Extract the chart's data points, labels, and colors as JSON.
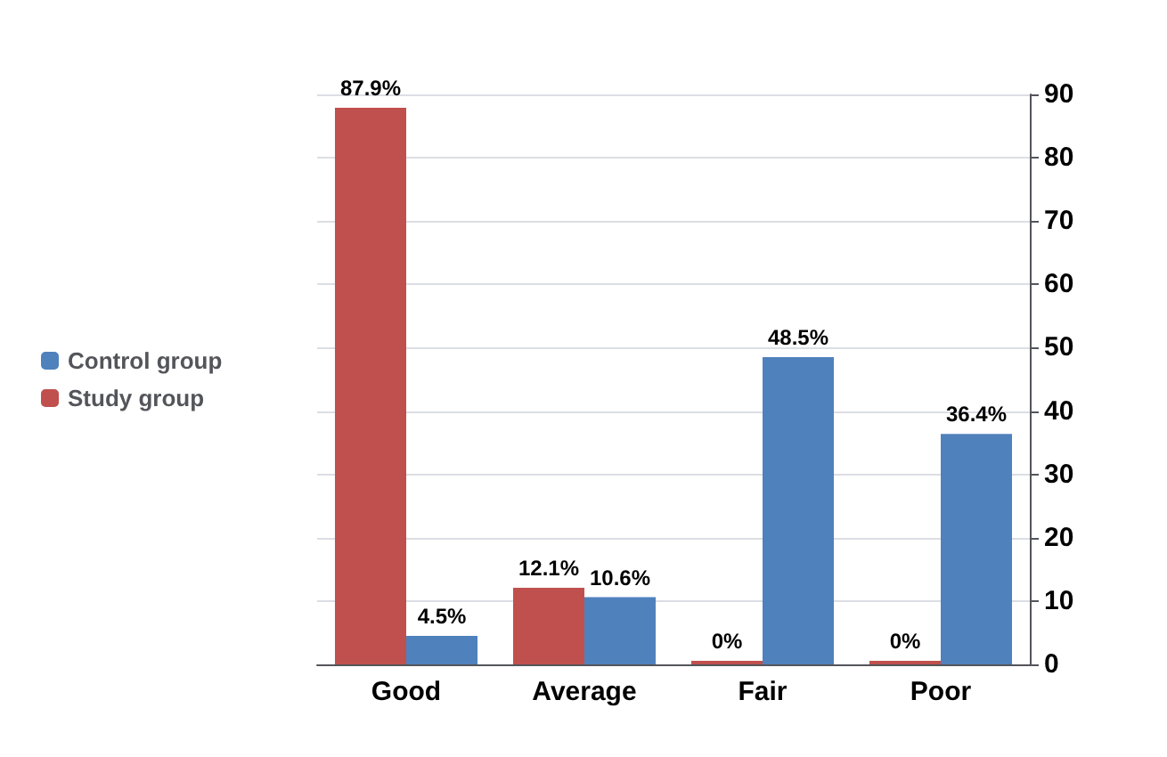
{
  "chart_data": {
    "type": "bar",
    "categories": [
      "Good",
      "Average",
      "Fair",
      "Poor"
    ],
    "series": [
      {
        "name": "Study group",
        "color": "#c0504d",
        "values": [
          87.9,
          12.1,
          0,
          0
        ],
        "value_labels": [
          "87.9%",
          "12.1%",
          "0%",
          "0%"
        ]
      },
      {
        "name": "Control group",
        "color": "#4f81bd",
        "values": [
          4.5,
          10.6,
          48.5,
          36.4
        ],
        "value_labels": [
          "4.5%",
          "10.6%",
          "48.5%",
          "36.4%"
        ]
      }
    ],
    "ylim": [
      0,
      90
    ],
    "yticks": [
      0,
      10,
      20,
      30,
      40,
      50,
      60,
      70,
      80,
      90
    ],
    "grid": "y",
    "legend": "left"
  }
}
